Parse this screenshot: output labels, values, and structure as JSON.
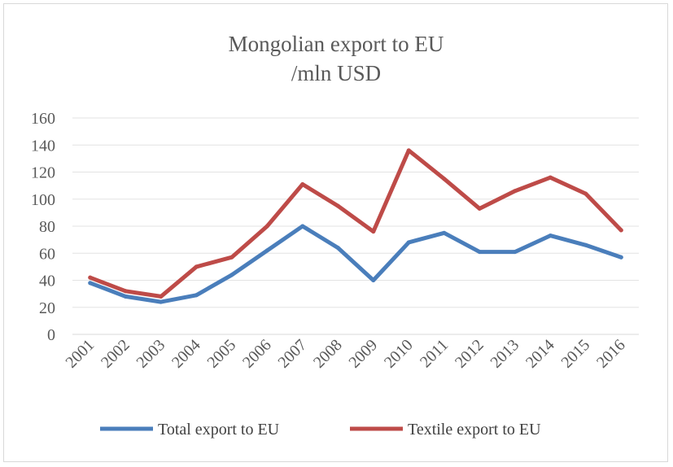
{
  "chart_data": {
    "type": "line",
    "title": [
      "Mongolian export to EU",
      "/mln USD"
    ],
    "xlabel": "",
    "ylabel": "",
    "categories": [
      "2001",
      "2002",
      "2003",
      "2004",
      "2005",
      "2006",
      "2007",
      "2008",
      "2009",
      "2010",
      "2011",
      "2012",
      "2013",
      "2014",
      "2015",
      "2016"
    ],
    "ylim": [
      0,
      160
    ],
    "yticks": [
      0,
      20,
      40,
      60,
      80,
      100,
      120,
      140,
      160
    ],
    "grid": true,
    "legend_position": "bottom",
    "series": [
      {
        "name": "Total export to EU",
        "color": "#4a7ebb",
        "values": [
          38,
          28,
          24,
          29,
          44,
          62,
          80,
          64,
          40,
          68,
          75,
          61,
          61,
          73,
          66,
          57
        ]
      },
      {
        "name": "Textile export to EU",
        "color": "#be4b48",
        "values": [
          42,
          32,
          28,
          50,
          57,
          80,
          111,
          95,
          76,
          136,
          115,
          93,
          106,
          116,
          104,
          77
        ]
      }
    ]
  }
}
